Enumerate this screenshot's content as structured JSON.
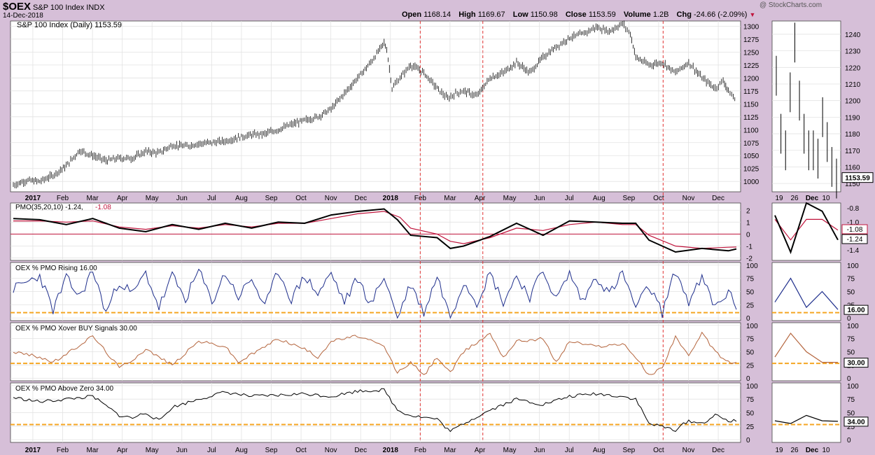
{
  "header": {
    "symbol": "$OEX",
    "name": "S&P 100 Index INDX",
    "date": "14-Dec-2018",
    "open_label": "Open",
    "open": "1168.14",
    "high_label": "High",
    "high": "1169.67",
    "low_label": "Low",
    "low": "1150.98",
    "close_label": "Close",
    "close": "1153.59",
    "volume_label": "Volume",
    "volume": "1.2B",
    "chg_label": "Chg",
    "chg": "-24.66 (-2.09%)",
    "credit": "@ StockCharts.com",
    "down_icon": "triangle-down-icon"
  },
  "colors": {
    "bg": "#d6bfd8",
    "pmo": "#000000",
    "signal": "#c0143c",
    "rising": "#1e2e8c",
    "xover": "#b4643c",
    "abovezero": "#000000",
    "threshold": "#f5a623",
    "event": "#e03030"
  },
  "chart_data": [
    {
      "type": "ohlc",
      "title": "S&P 100 Index (Daily) 1153.59",
      "ylim": [
        980,
        1310
      ],
      "yticks": [
        1000,
        1025,
        1050,
        1075,
        1100,
        1125,
        1150,
        1175,
        1200,
        1225,
        1250,
        1275,
        1300
      ],
      "x_labels": [
        "2017",
        "Feb",
        "Mar",
        "Apr",
        "May",
        "Jun",
        "Jul",
        "Aug",
        "Sep",
        "Oct",
        "Nov",
        "Dec",
        "2018",
        "Feb",
        "Mar",
        "Apr",
        "May",
        "Jun",
        "Jul",
        "Aug",
        "Sep",
        "Oct",
        "Nov",
        "Dec"
      ],
      "x_bold": [
        "2017",
        "2018"
      ],
      "event_lines": [
        "Feb 2018",
        "Apr 2018",
        "Oct 2018"
      ],
      "path": [
        [
          0,
          993
        ],
        [
          0.5,
          1002
        ],
        [
          1,
          1000
        ],
        [
          1.5,
          1012
        ],
        [
          2,
          1030
        ],
        [
          2.5,
          1060
        ],
        [
          3,
          1050
        ],
        [
          3.5,
          1040
        ],
        [
          4,
          1045
        ],
        [
          4.5,
          1045
        ],
        [
          5,
          1058
        ],
        [
          5.5,
          1055
        ],
        [
          6,
          1070
        ],
        [
          6.5,
          1068
        ],
        [
          7,
          1073
        ],
        [
          7.5,
          1075
        ],
        [
          8,
          1078
        ],
        [
          8.5,
          1085
        ],
        [
          9,
          1090
        ],
        [
          9.5,
          1092
        ],
        [
          10,
          1100
        ],
        [
          10.5,
          1110
        ],
        [
          11,
          1118
        ],
        [
          11.5,
          1125
        ],
        [
          12,
          1140
        ],
        [
          12.5,
          1170
        ],
        [
          13,
          1200
        ],
        [
          13.5,
          1230
        ],
        [
          14,
          1268
        ],
        [
          14.1,
          1255
        ],
        [
          14.3,
          1180
        ],
        [
          14.6,
          1200
        ],
        [
          15,
          1225
        ],
        [
          15.5,
          1210
        ],
        [
          16,
          1180
        ],
        [
          16.4,
          1160
        ],
        [
          16.7,
          1170
        ],
        [
          17,
          1175
        ],
        [
          17.5,
          1165
        ],
        [
          18,
          1200
        ],
        [
          18.5,
          1210
        ],
        [
          19,
          1230
        ],
        [
          19.5,
          1210
        ],
        [
          20,
          1240
        ],
        [
          20.5,
          1260
        ],
        [
          21,
          1278
        ],
        [
          21.5,
          1285
        ],
        [
          22,
          1298
        ],
        [
          22.5,
          1290
        ],
        [
          23,
          1305
        ],
        [
          23.3,
          1285
        ],
        [
          23.5,
          1240
        ],
        [
          24,
          1225
        ],
        [
          24.5,
          1230
        ],
        [
          25,
          1210
        ],
        [
          25.5,
          1230
        ],
        [
          26,
          1200
        ],
        [
          26.5,
          1180
        ],
        [
          26.8,
          1195
        ],
        [
          27,
          1175
        ],
        [
          27.3,
          1155
        ]
      ],
      "zoom": {
        "x_labels": [
          "19",
          "26",
          "Dec",
          "10"
        ],
        "ylim": [
          1145,
          1248
        ],
        "yticks": [
          1150,
          1160,
          1170,
          1180,
          1190,
          1200,
          1210,
          1220,
          1230,
          1240
        ],
        "last_label": "1153.59"
      }
    },
    {
      "type": "line",
      "title": "PMO(35,20,10) -1.24, -1.08",
      "title_main": "PMO(35,20,10) -1.24,",
      "title_signal": "-1.08",
      "ylim": [
        -2.2,
        2.6
      ],
      "yticks": [
        "2",
        "1",
        "0",
        "-1",
        "-2"
      ],
      "series": [
        {
          "name": "PMO",
          "values": [
            [
              0,
              1.3
            ],
            [
              1,
              1.2
            ],
            [
              2,
              0.8
            ],
            [
              3,
              1.3
            ],
            [
              4,
              0.5
            ],
            [
              5,
              0.2
            ],
            [
              6,
              0.8
            ],
            [
              7,
              0.4
            ],
            [
              8,
              0.9
            ],
            [
              9,
              0.5
            ],
            [
              10,
              1
            ],
            [
              11,
              0.9
            ],
            [
              12,
              1.6
            ],
            [
              13,
              1.9
            ],
            [
              14,
              2.1
            ],
            [
              14.5,
              1.2
            ],
            [
              15,
              -0.1
            ],
            [
              16,
              -0.3
            ],
            [
              16.5,
              -1.2
            ],
            [
              17,
              -1
            ],
            [
              18,
              -0.2
            ],
            [
              19,
              0.9
            ],
            [
              20,
              -0.1
            ],
            [
              21,
              1.1
            ],
            [
              22,
              1
            ],
            [
              23,
              0.9
            ],
            [
              23.5,
              0.9
            ],
            [
              24,
              -0.5
            ],
            [
              25,
              -1.5
            ],
            [
              26,
              -1.2
            ],
            [
              27,
              -1.4
            ],
            [
              27.3,
              -1.24
            ]
          ]
        },
        {
          "name": "Signal",
          "values": [
            [
              0,
              1.1
            ],
            [
              1,
              1.1
            ],
            [
              2,
              1
            ],
            [
              3,
              1.1
            ],
            [
              4,
              0.6
            ],
            [
              5,
              0.4
            ],
            [
              6,
              0.7
            ],
            [
              7,
              0.5
            ],
            [
              8,
              0.8
            ],
            [
              9,
              0.6
            ],
            [
              10,
              0.9
            ],
            [
              11,
              0.9
            ],
            [
              12,
              1.3
            ],
            [
              13,
              1.7
            ],
            [
              14,
              1.9
            ],
            [
              14.6,
              1.4
            ],
            [
              15,
              0.5
            ],
            [
              16,
              0
            ],
            [
              16.5,
              -0.6
            ],
            [
              17,
              -0.8
            ],
            [
              18,
              -0.3
            ],
            [
              19,
              0.5
            ],
            [
              20,
              0.3
            ],
            [
              21,
              0.8
            ],
            [
              22,
              1
            ],
            [
              23,
              0.8
            ],
            [
              23.5,
              0.8
            ],
            [
              24,
              -0.1
            ],
            [
              25,
              -1
            ],
            [
              26,
              -1.2
            ],
            [
              27,
              -1.1
            ],
            [
              27.3,
              -1.08
            ]
          ]
        }
      ],
      "zoom": {
        "yticks": [
          "-0.8",
          "-1.0",
          "-1.2",
          "-1.4"
        ],
        "last_labels": [
          "-1.08",
          "-1.24"
        ]
      }
    },
    {
      "type": "line",
      "title": "OEX % PMO Rising 16.00",
      "ylim": [
        -5,
        105
      ],
      "yticks": [
        100,
        75,
        50,
        25,
        0
      ],
      "threshold": 10,
      "values": [
        [
          0,
          55
        ],
        [
          1,
          80
        ],
        [
          1.5,
          15
        ],
        [
          2,
          75
        ],
        [
          2.5,
          40
        ],
        [
          3,
          90
        ],
        [
          3.5,
          10
        ],
        [
          4,
          70
        ],
        [
          4.5,
          45
        ],
        [
          5,
          85
        ],
        [
          5.5,
          20
        ],
        [
          6,
          80
        ],
        [
          6.5,
          35
        ],
        [
          7,
          90
        ],
        [
          7.5,
          30
        ],
        [
          8,
          85
        ],
        [
          8.5,
          40
        ],
        [
          9,
          75
        ],
        [
          9.5,
          20
        ],
        [
          10,
          90
        ],
        [
          10.5,
          35
        ],
        [
          11,
          80
        ],
        [
          11.5,
          45
        ],
        [
          12,
          85
        ],
        [
          12.5,
          30
        ],
        [
          13,
          75
        ],
        [
          13.5,
          25
        ],
        [
          14,
          80
        ],
        [
          14.5,
          0
        ],
        [
          15,
          65
        ],
        [
          15.5,
          10
        ],
        [
          16,
          80
        ],
        [
          16.5,
          0
        ],
        [
          17,
          70
        ],
        [
          17.5,
          30
        ],
        [
          18,
          85
        ],
        [
          18.5,
          30
        ],
        [
          19,
          80
        ],
        [
          19.5,
          40
        ],
        [
          20,
          90
        ],
        [
          20.5,
          35
        ],
        [
          21,
          85
        ],
        [
          21.5,
          30
        ],
        [
          22,
          80
        ],
        [
          22.5,
          45
        ],
        [
          23,
          85
        ],
        [
          23.5,
          20
        ],
        [
          24,
          60
        ],
        [
          24.5,
          10
        ],
        [
          25,
          90
        ],
        [
          25.5,
          30
        ],
        [
          26,
          75
        ],
        [
          26.5,
          20
        ],
        [
          27,
          50
        ],
        [
          27.3,
          16
        ]
      ],
      "zoom": {
        "last_label": "16.00"
      }
    },
    {
      "type": "line",
      "title": "OEX % PMO Xover BUY Signals 30.00",
      "ylim": [
        -5,
        105
      ],
      "yticks": [
        100,
        75,
        50,
        25,
        0
      ],
      "threshold": 28,
      "values": [
        [
          0,
          50
        ],
        [
          1,
          40
        ],
        [
          1.5,
          30
        ],
        [
          2,
          45
        ],
        [
          3,
          80
        ],
        [
          4,
          20
        ],
        [
          4.5,
          35
        ],
        [
          5,
          55
        ],
        [
          5.5,
          40
        ],
        [
          6,
          25
        ],
        [
          7,
          70
        ],
        [
          8,
          60
        ],
        [
          8.5,
          30
        ],
        [
          9,
          45
        ],
        [
          10,
          75
        ],
        [
          11,
          55
        ],
        [
          11.5,
          40
        ],
        [
          12,
          70
        ],
        [
          13,
          80
        ],
        [
          14,
          60
        ],
        [
          14.5,
          10
        ],
        [
          15,
          30
        ],
        [
          15.5,
          5
        ],
        [
          16,
          40
        ],
        [
          16.5,
          10
        ],
        [
          17,
          50
        ],
        [
          18,
          85
        ],
        [
          18.5,
          40
        ],
        [
          19,
          70
        ],
        [
          20,
          75
        ],
        [
          20.5,
          30
        ],
        [
          21,
          70
        ],
        [
          22,
          60
        ],
        [
          23,
          65
        ],
        [
          23.5,
          40
        ],
        [
          24,
          5
        ],
        [
          24.5,
          20
        ],
        [
          25,
          80
        ],
        [
          25.5,
          40
        ],
        [
          26,
          85
        ],
        [
          26.5,
          50
        ],
        [
          27,
          30
        ],
        [
          27.3,
          30
        ]
      ],
      "zoom": {
        "last_label": "30.00"
      }
    },
    {
      "type": "line",
      "title": "OEX % PMO Above Zero 34.00",
      "ylim": [
        -5,
        105
      ],
      "yticks": [
        100,
        75,
        50,
        25,
        0
      ],
      "threshold": 28,
      "values": [
        [
          0,
          78
        ],
        [
          1,
          70
        ],
        [
          2,
          75
        ],
        [
          3,
          80
        ],
        [
          4,
          45
        ],
        [
          4.5,
          40
        ],
        [
          5,
          50
        ],
        [
          5.5,
          35
        ],
        [
          6,
          60
        ],
        [
          7,
          75
        ],
        [
          8,
          88
        ],
        [
          9,
          80
        ],
        [
          10,
          82
        ],
        [
          11,
          85
        ],
        [
          12,
          80
        ],
        [
          13,
          90
        ],
        [
          14,
          92
        ],
        [
          14.5,
          55
        ],
        [
          15,
          45
        ],
        [
          16,
          38
        ],
        [
          16.5,
          15
        ],
        [
          17,
          30
        ],
        [
          18,
          55
        ],
        [
          19,
          75
        ],
        [
          20,
          65
        ],
        [
          21,
          80
        ],
        [
          22,
          85
        ],
        [
          23,
          80
        ],
        [
          23.5,
          75
        ],
        [
          24,
          30
        ],
        [
          25,
          18
        ],
        [
          25.5,
          35
        ],
        [
          26,
          30
        ],
        [
          26.5,
          45
        ],
        [
          27,
          35
        ],
        [
          27.3,
          34
        ]
      ],
      "zoom": {
        "last_label": "34.00"
      }
    }
  ]
}
